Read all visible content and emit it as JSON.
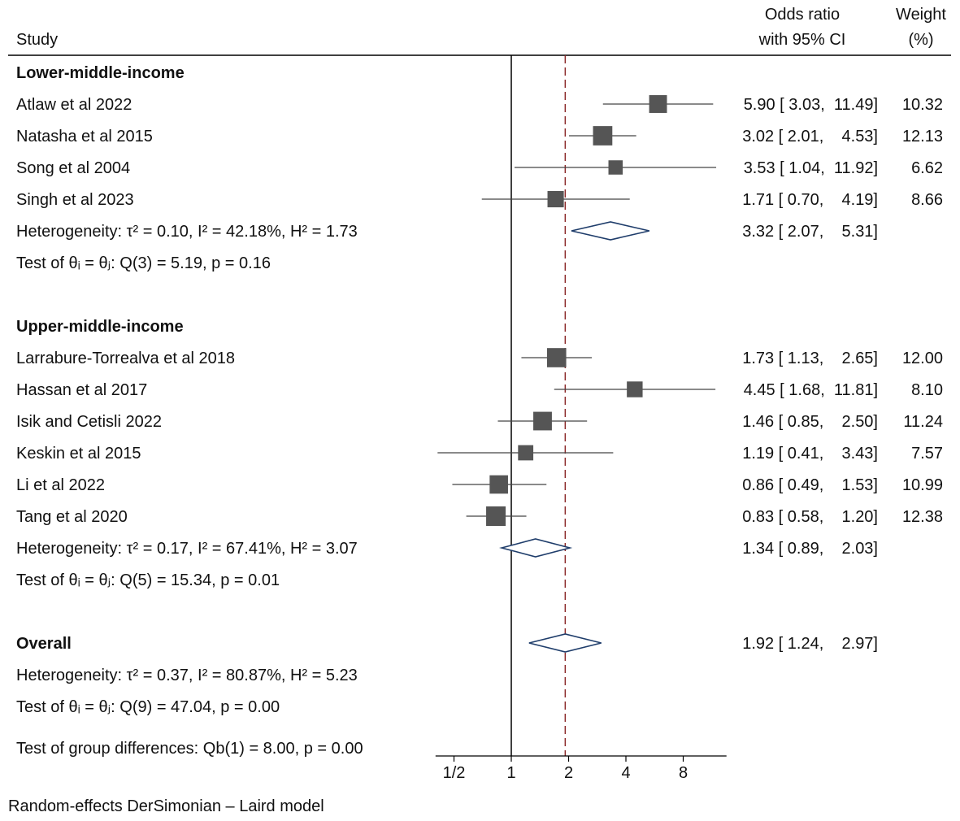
{
  "chart_data": {
    "type": "forest",
    "title": "",
    "headers": {
      "study": "Study",
      "or_line1": "Odds ratio",
      "or_line2": "with 95% CI",
      "weight_line1": "Weight",
      "weight_line2": "(%)"
    },
    "x_axis": {
      "scale": "log2",
      "range": [
        0.4,
        13.5
      ],
      "ticks": [
        {
          "value": 0.5,
          "label": "1/2"
        },
        {
          "value": 1,
          "label": "1"
        },
        {
          "value": 2,
          "label": "2"
        },
        {
          "value": 4,
          "label": "4"
        },
        {
          "value": 8,
          "label": "8"
        }
      ],
      "null_line": 1,
      "overall_line": 1.92
    },
    "rows": [
      {
        "kind": "group",
        "label": "Lower-middle-income"
      },
      {
        "kind": "study",
        "label": "Atlaw et al 2022",
        "or": 5.9,
        "lo": 3.03,
        "hi": 11.49,
        "ci_text": "5.90 [ 3.03,  11.49]",
        "weight": 10.32,
        "weight_text": "10.32"
      },
      {
        "kind": "study",
        "label": "Natasha et al 2015",
        "or": 3.02,
        "lo": 2.01,
        "hi": 4.53,
        "ci_text": "3.02 [ 2.01,    4.53]",
        "weight": 12.13,
        "weight_text": "12.13"
      },
      {
        "kind": "study",
        "label": "Song et al 2004",
        "or": 3.53,
        "lo": 1.04,
        "hi": 11.92,
        "ci_text": "3.53 [ 1.04,  11.92]",
        "weight": 6.62,
        "weight_text": "6.62"
      },
      {
        "kind": "study",
        "label": "Singh et al 2023",
        "or": 1.71,
        "lo": 0.7,
        "hi": 4.19,
        "ci_text": "1.71 [ 0.70,    4.19]",
        "weight": 8.66,
        "weight_text": "8.66"
      },
      {
        "kind": "pooled",
        "label": "Heterogeneity: τ² = 0.10, I² = 42.18%, H² = 1.73",
        "or": 3.32,
        "lo": 2.07,
        "hi": 5.31,
        "ci_text": "3.32 [ 2.07,    5.31]"
      },
      {
        "kind": "text",
        "label": "Test of θᵢ = θⱼ: Q(3) = 5.19, p = 0.16"
      },
      {
        "kind": "blank"
      },
      {
        "kind": "group",
        "label": "Upper-middle-income"
      },
      {
        "kind": "study",
        "label": "Larrabure-Torrealva et al 2018",
        "or": 1.73,
        "lo": 1.13,
        "hi": 2.65,
        "ci_text": "1.73 [ 1.13,    2.65]",
        "weight": 12.0,
        "weight_text": "12.00"
      },
      {
        "kind": "study",
        "label": "Hassan et al 2017",
        "or": 4.45,
        "lo": 1.68,
        "hi": 11.81,
        "ci_text": "4.45 [ 1.68,  11.81]",
        "weight": 8.1,
        "weight_text": "8.10"
      },
      {
        "kind": "study",
        "label": "Isik and Cetisli 2022",
        "or": 1.46,
        "lo": 0.85,
        "hi": 2.5,
        "ci_text": "1.46 [ 0.85,    2.50]",
        "weight": 11.24,
        "weight_text": "11.24"
      },
      {
        "kind": "study",
        "label": "Keskin et al 2015",
        "or": 1.19,
        "lo": 0.41,
        "hi": 3.43,
        "ci_text": "1.19 [ 0.41,    3.43]",
        "weight": 7.57,
        "weight_text": "7.57"
      },
      {
        "kind": "study",
        "label": "Li et al 2022",
        "or": 0.86,
        "lo": 0.49,
        "hi": 1.53,
        "ci_text": "0.86 [ 0.49,    1.53]",
        "weight": 10.99,
        "weight_text": "10.99"
      },
      {
        "kind": "study",
        "label": "Tang et al 2020",
        "or": 0.83,
        "lo": 0.58,
        "hi": 1.2,
        "ci_text": "0.83 [ 0.58,    1.20]",
        "weight": 12.38,
        "weight_text": "12.38"
      },
      {
        "kind": "pooled",
        "label": "Heterogeneity: τ² = 0.17, I² = 67.41%, H² = 3.07",
        "or": 1.34,
        "lo": 0.89,
        "hi": 2.03,
        "ci_text": "1.34 [ 0.89,    2.03]"
      },
      {
        "kind": "text",
        "label": "Test of θᵢ = θⱼ: Q(5) = 15.34, p = 0.01"
      },
      {
        "kind": "blank"
      },
      {
        "kind": "pooled",
        "label": "Overall",
        "bold": true,
        "or": 1.92,
        "lo": 1.24,
        "hi": 2.97,
        "ci_text": "1.92 [ 1.24,    2.97]"
      },
      {
        "kind": "text",
        "label": "Heterogeneity: τ² = 0.37, I² = 80.87%, H² = 5.23"
      },
      {
        "kind": "text",
        "label": "Test of θᵢ = θⱼ: Q(9) = 47.04, p = 0.00"
      },
      {
        "kind": "gap"
      },
      {
        "kind": "text",
        "label": "Test of group differences: Qb(1) = 8.00, p = 0.00"
      }
    ],
    "footnote": "Random-effects DerSimonian – Laird model",
    "colors": {
      "marker": "#555555",
      "ci_line": "#444444",
      "diamond_stroke": "#1f3d6b",
      "overall_line": "#8b2a2a",
      "null_line": "#000000"
    }
  }
}
